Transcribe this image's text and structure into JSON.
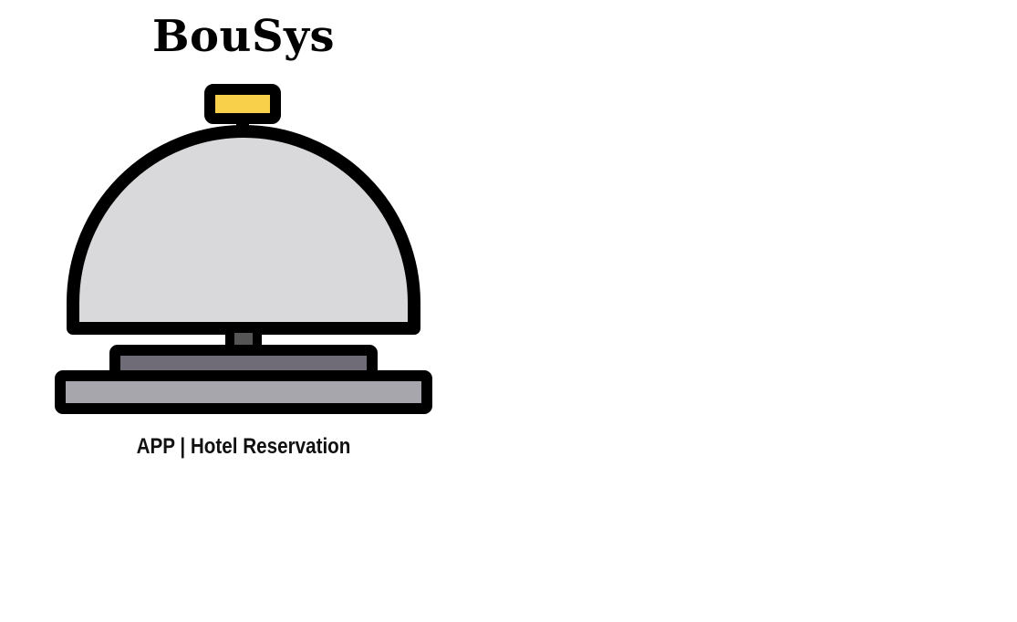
{
  "app": {
    "title": "BouSys",
    "subtitle": "APP | Hotel Reservation",
    "logo_icon": "service-bell-icon"
  },
  "colors": {
    "background": "#ffffff",
    "outline": "#000000",
    "dome": "#d9d9db",
    "button": "#f8d04a",
    "base_top": "#6f6c77",
    "base_bottom": "#a7a6ad",
    "stem": "#555555"
  }
}
